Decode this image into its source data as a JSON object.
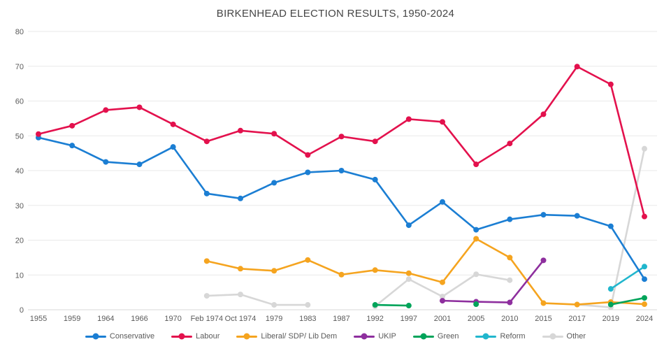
{
  "title": "BIRKENHEAD ELECTION RESULTS, 1950-2024",
  "chart_data": {
    "type": "line",
    "title": "BIRKENHEAD ELECTION RESULTS, 1950-2024",
    "xlabel": "",
    "ylabel": "",
    "ylim": [
      0,
      80
    ],
    "y_ticks": [
      0,
      10,
      20,
      30,
      40,
      50,
      60,
      70,
      80
    ],
    "grid": true,
    "legend_position": "bottom",
    "categories": [
      "1955",
      "1959",
      "1964",
      "1966",
      "1970",
      "Feb 1974",
      "Oct 1974",
      "1979",
      "1983",
      "1987",
      "1992",
      "1997",
      "2001",
      "2005",
      "2010",
      "2015",
      "2017",
      "2019",
      "2024"
    ],
    "series": [
      {
        "name": "Conservative",
        "color": "#1b7ed3",
        "values": [
          49.5,
          47.2,
          42.5,
          41.8,
          46.8,
          33.4,
          32,
          36.5,
          39.5,
          40,
          37.4,
          24.3,
          31,
          23,
          26,
          27.3,
          27,
          24,
          8.8
        ]
      },
      {
        "name": "Labour",
        "color": "#e3114d",
        "values": [
          50.5,
          52.9,
          57.4,
          58.2,
          53.3,
          48.4,
          51.5,
          50.6,
          44.5,
          49.8,
          48.4,
          54.8,
          54,
          41.8,
          47.8,
          56.2,
          69.9,
          64.8,
          26.8
        ]
      },
      {
        "name": "Liberal/ SDP/ Lib Dem",
        "color": "#f5a41f",
        "values": [
          null,
          null,
          null,
          null,
          null,
          14,
          11.8,
          11.2,
          14.3,
          10.1,
          11.4,
          10.5,
          7.9,
          20.4,
          15,
          1.9,
          1.5,
          2.2,
          1.6
        ]
      },
      {
        "name": "UKIP",
        "color": "#8e2f9e",
        "values": [
          null,
          null,
          null,
          null,
          null,
          null,
          null,
          null,
          null,
          null,
          null,
          null,
          2.6,
          2.3,
          2.1,
          14.2,
          null,
          null,
          null
        ]
      },
      {
        "name": "Green",
        "color": "#00a45a",
        "values": [
          null,
          null,
          null,
          null,
          null,
          null,
          null,
          null,
          null,
          null,
          1.4,
          1.2,
          null,
          1.6,
          null,
          null,
          null,
          1.5,
          3.4
        ]
      },
      {
        "name": "Reform",
        "color": "#21b6cd",
        "values": [
          null,
          null,
          null,
          null,
          null,
          null,
          null,
          null,
          null,
          null,
          null,
          null,
          null,
          null,
          null,
          null,
          null,
          6,
          12.4
        ]
      },
      {
        "name": "Other",
        "color": "#d7d7d7",
        "values": [
          null,
          null,
          null,
          null,
          null,
          4,
          4.4,
          1.4,
          1.4,
          null,
          1,
          8.8,
          3.8,
          10.2,
          8.5,
          null,
          1.5,
          0.7,
          46.3
        ]
      }
    ]
  }
}
